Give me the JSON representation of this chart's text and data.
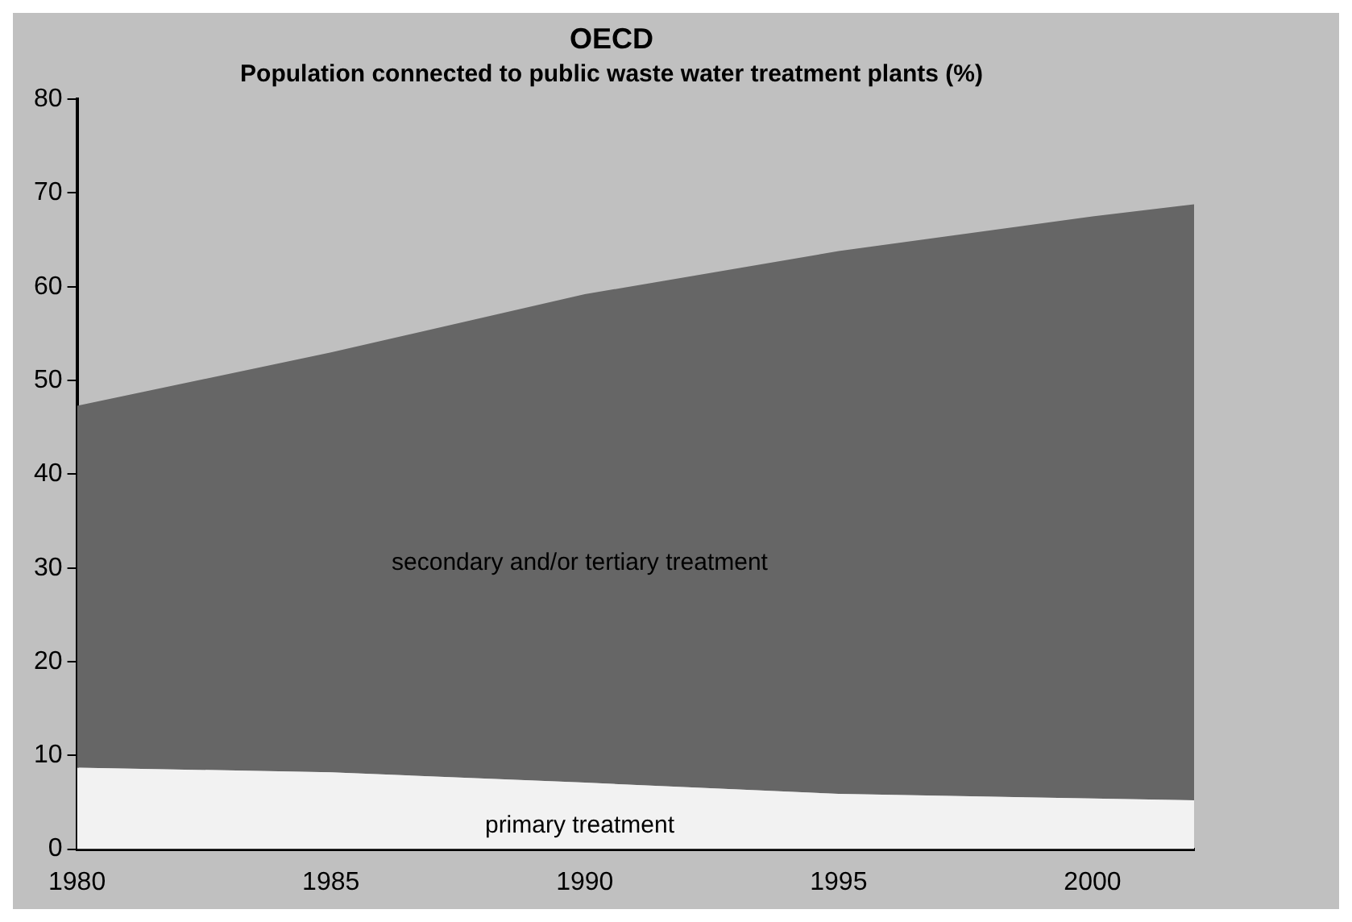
{
  "chart_data": {
    "type": "area",
    "title": "OECD",
    "subtitle": "Population connected to public waste water treatment plants (%)",
    "x": [
      1980,
      1985,
      1990,
      1995,
      2000,
      2002
    ],
    "stacked": true,
    "series": [
      {
        "name": "primary treatment",
        "color": "#f2f2f2",
        "values": [
          8.7,
          8.2,
          7.1,
          5.9,
          5.4,
          5.2
        ]
      },
      {
        "name": "secondary and/or tertiary treatment",
        "color": "#666666",
        "values": [
          38.6,
          44.8,
          52.1,
          57.9,
          62.1,
          63.6
        ]
      }
    ],
    "xlim": [
      1980,
      2002
    ],
    "xticks": [
      1980,
      1985,
      1990,
      1995,
      2000
    ],
    "ylim": [
      0,
      80
    ],
    "yticks": [
      0,
      10,
      20,
      30,
      40,
      50,
      60,
      70,
      80
    ],
    "grid": false,
    "legend": false
  }
}
